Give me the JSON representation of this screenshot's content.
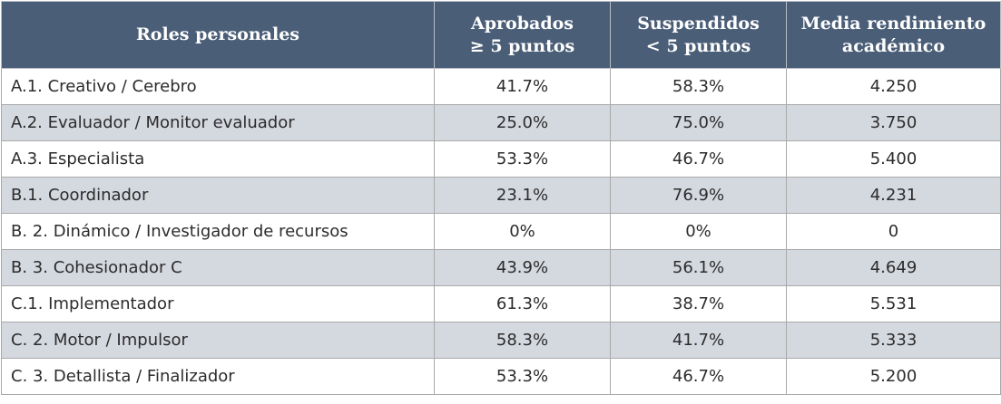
{
  "table": {
    "headers": [
      [
        "Roles personales"
      ],
      [
        "Aprobados",
        "≥ 5 puntos"
      ],
      [
        "Suspendidos",
        "< 5 puntos"
      ],
      [
        "Media rendimiento",
        "académico"
      ]
    ],
    "rows": [
      {
        "role": "A.1. Creativo / Cerebro",
        "aprobados": "41.7%",
        "suspendidos": "58.3%",
        "media": "4.250"
      },
      {
        "role": "A.2. Evaluador / Monitor evaluador",
        "aprobados": "25.0%",
        "suspendidos": "75.0%",
        "media": "3.750"
      },
      {
        "role": "A.3. Especialista",
        "aprobados": "53.3%",
        "suspendidos": "46.7%",
        "media": "5.400"
      },
      {
        "role": "B.1. Coordinador",
        "aprobados": "23.1%",
        "suspendidos": "76.9%",
        "media": "4.231"
      },
      {
        "role": "B. 2. Dinámico / Investigador de recursos",
        "aprobados": "0%",
        "suspendidos": "0%",
        "media": "0"
      },
      {
        "role": "B. 3. Cohesionador C",
        "aprobados": "43.9%",
        "suspendidos": "56.1%",
        "media": "4.649"
      },
      {
        "role": "C.1. Implementador",
        "aprobados": "61.3%",
        "suspendidos": "38.7%",
        "media": "5.531"
      },
      {
        "role": "C. 2. Motor / Impulsor",
        "aprobados": "58.3%",
        "suspendidos": "41.7%",
        "media": "5.333"
      },
      {
        "role": "C. 3. Detallista / Finalizador",
        "aprobados": "53.3%",
        "suspendidos": "46.7%",
        "media": "5.200"
      }
    ]
  }
}
